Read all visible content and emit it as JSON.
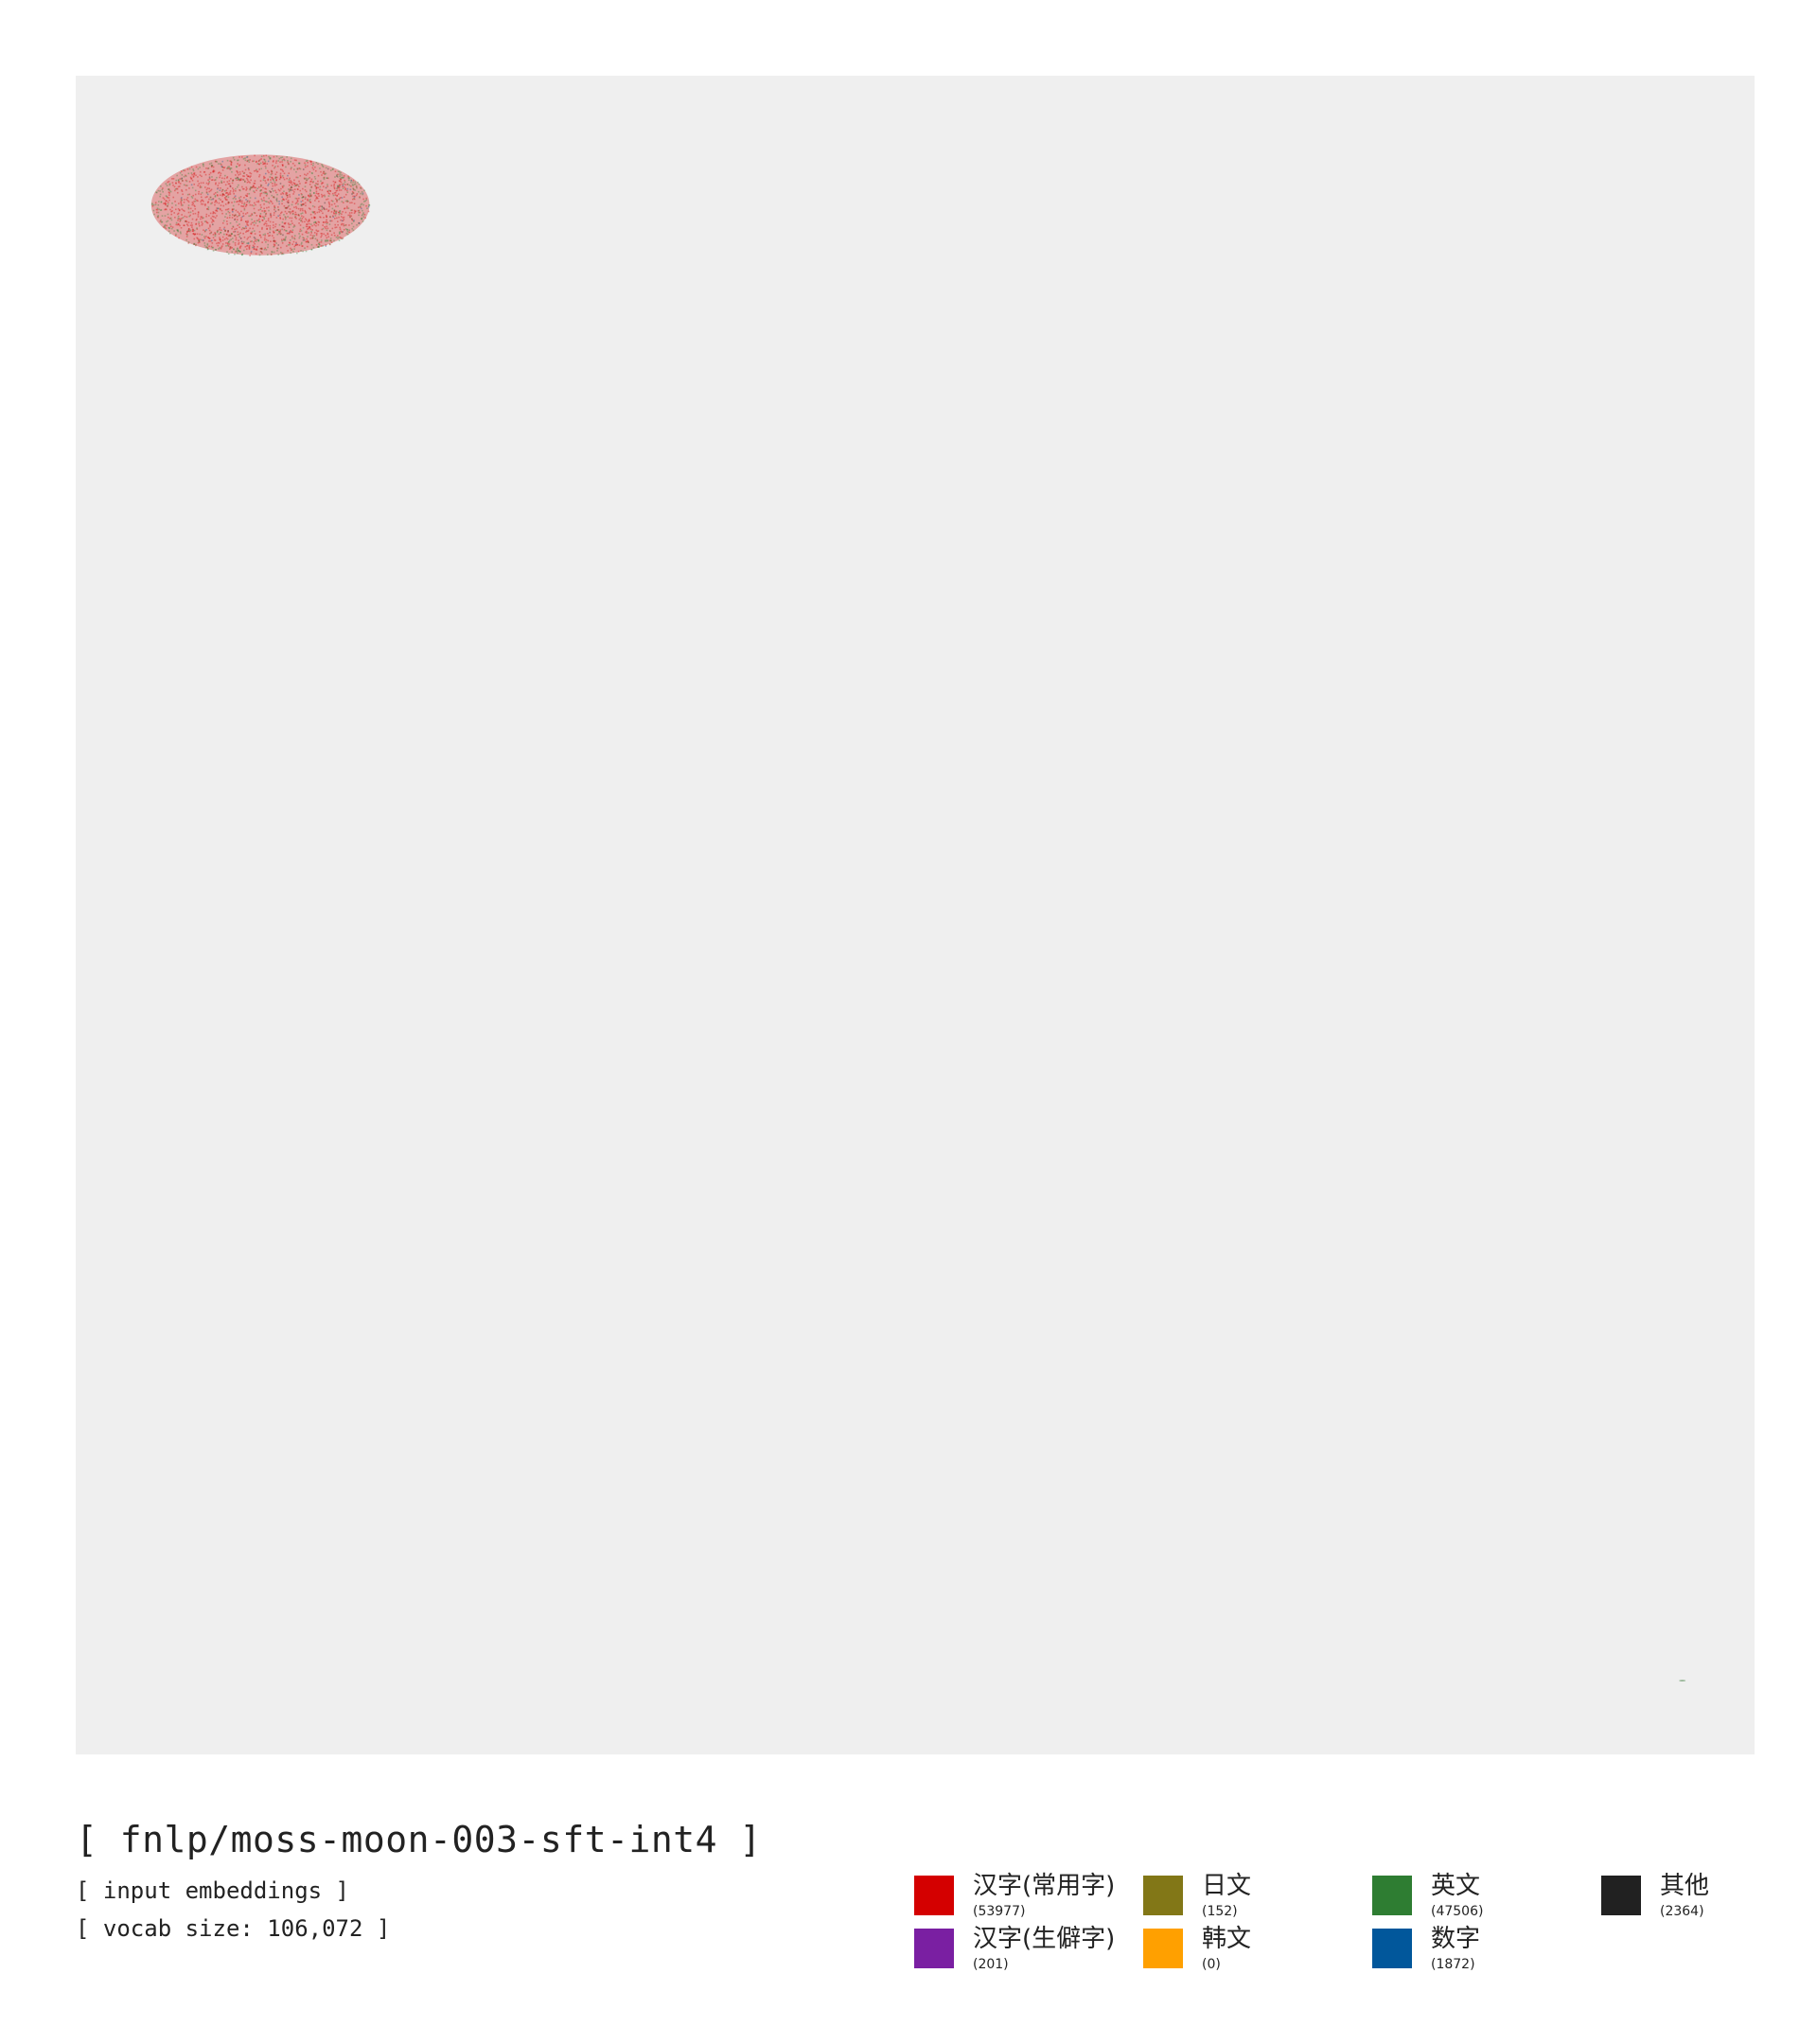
{
  "chart_data": {
    "type": "scatter",
    "title": "[ fnlp/moss-moon-003-sft-int4 ]",
    "subtitle": "[ input embeddings ]",
    "caption": "[ vocab size: 106,072 ]",
    "xlabel": "",
    "ylabel": "",
    "grid": false,
    "legend_position": "bottom-right",
    "background_color": "#efefef",
    "series": [
      {
        "name": "汉字(常用字)",
        "count": "(53977)",
        "color": "#d40000"
      },
      {
        "name": "汉字(生僻字)",
        "count": "(201)",
        "color": "#7a1fa2"
      },
      {
        "name": "日文",
        "count": "(152)",
        "color": "#827717"
      },
      {
        "name": "韩文",
        "count": "(0)",
        "color": "#ffa000"
      },
      {
        "name": "英文",
        "count": "(47506)",
        "color": "#2e7d32"
      },
      {
        "name": "数字",
        "count": "(1872)",
        "color": "#01579b"
      },
      {
        "name": "其他",
        "count": "(2364)",
        "color": "#212121"
      }
    ],
    "clusters": [
      {
        "cx": 0.11,
        "cy": 0.077,
        "rx": 0.065,
        "ry": 0.03
      },
      {
        "cx": 0.957,
        "cy": 0.956,
        "rx": 0.002,
        "ry": 0.0005
      }
    ]
  }
}
